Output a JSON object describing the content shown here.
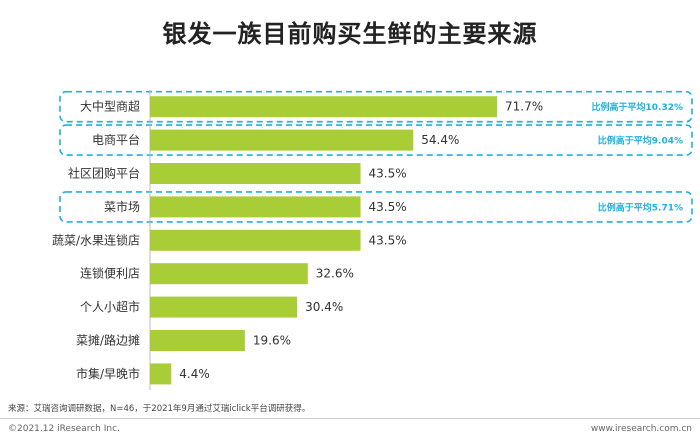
{
  "header": {
    "title": "银发一族目前购买生鲜的主要来源"
  },
  "colors": {
    "bar": "#a9cd36",
    "highlight_border": "#1fb1e0",
    "annotation_text": "#1fb1e0"
  },
  "chart_data": {
    "type": "bar",
    "orientation": "horizontal",
    "title": "银发一族目前购买生鲜的主要来源",
    "categories": [
      "大中型商超",
      "电商平台",
      "社区团购平台",
      "菜市场",
      "蔬菜/水果连锁店",
      "连锁便利店",
      "个人小超市",
      "菜摊/路边摊",
      "市集/早晚市"
    ],
    "values": [
      71.7,
      54.4,
      43.5,
      43.5,
      43.5,
      32.6,
      30.4,
      19.6,
      4.4
    ],
    "value_labels": [
      "71.7%",
      "54.4%",
      "43.5%",
      "43.5%",
      "43.5%",
      "32.6%",
      "30.4%",
      "19.6%",
      "4.4%"
    ],
    "unit": "%",
    "xlim": [
      0,
      100
    ],
    "grid": false,
    "highlights": [
      {
        "category": "大中型商超",
        "annotation": "比例高于平均10.32%"
      },
      {
        "category": "电商平台",
        "annotation": "比例高于平均9.04%"
      },
      {
        "category": "菜市场",
        "annotation": "比例高于平均5.71%"
      }
    ]
  },
  "footer": {
    "source": "来源：艾瑞咨询调研数据，N=46，于2021年9月通过艾瑞iclick平台调研获得。",
    "copyright": "©2021.12 iResearch Inc.",
    "website": "www.iresearch.com.cn"
  }
}
